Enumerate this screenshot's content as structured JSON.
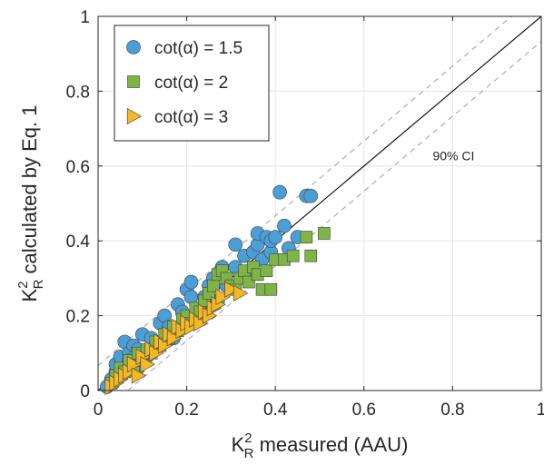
{
  "chart_data": {
    "type": "scatter",
    "title": "",
    "xlabel": {
      "main": "K",
      "sup": "2",
      "sub": "R",
      "rest": " measured (AAU)"
    },
    "ylabel": {
      "main": "K",
      "sup": "2",
      "sub": "R",
      "rest": " calculated by Eq. 1"
    },
    "xlim": [
      0,
      1
    ],
    "ylim": [
      0,
      1
    ],
    "xticks": [
      "0",
      "0.2",
      "0.4",
      "0.6",
      "0.8",
      "1"
    ],
    "yticks": [
      "0",
      "0.2",
      "0.4",
      "0.6",
      "0.8",
      "1"
    ],
    "grid": true,
    "legend_position": "top-left",
    "annotation": "90% CI",
    "reference_lines": [
      {
        "name": "1:1 line",
        "style": "solid",
        "color": "#000000",
        "points": [
          [
            0,
            0
          ],
          [
            1,
            1
          ]
        ]
      },
      {
        "name": "upper CI",
        "style": "dashed",
        "color": "#a6a6a6",
        "points": [
          [
            0,
            0.067
          ],
          [
            0.933,
            1
          ]
        ]
      },
      {
        "name": "lower CI",
        "style": "dashed",
        "color": "#a6a6a6",
        "points": [
          [
            0.067,
            0
          ],
          [
            1,
            0.933
          ]
        ]
      }
    ],
    "series": [
      {
        "name": "cot(α) = 1.5",
        "marker": "circle",
        "color": "#4a9fd8",
        "points": [
          [
            0.02,
            0.01
          ],
          [
            0.03,
            0.03
          ],
          [
            0.04,
            0.05
          ],
          [
            0.04,
            0.07
          ],
          [
            0.05,
            0.04
          ],
          [
            0.05,
            0.09
          ],
          [
            0.06,
            0.06
          ],
          [
            0.06,
            0.13
          ],
          [
            0.07,
            0.1
          ],
          [
            0.07,
            0.08
          ],
          [
            0.08,
            0.12
          ],
          [
            0.09,
            0.11
          ],
          [
            0.09,
            0.06
          ],
          [
            0.1,
            0.15
          ],
          [
            0.11,
            0.09
          ],
          [
            0.12,
            0.14
          ],
          [
            0.13,
            0.12
          ],
          [
            0.14,
            0.18
          ],
          [
            0.15,
            0.2
          ],
          [
            0.16,
            0.17
          ],
          [
            0.17,
            0.14
          ],
          [
            0.18,
            0.23
          ],
          [
            0.19,
            0.21
          ],
          [
            0.2,
            0.27
          ],
          [
            0.21,
            0.29
          ],
          [
            0.21,
            0.25
          ],
          [
            0.22,
            0.2
          ],
          [
            0.23,
            0.22
          ],
          [
            0.24,
            0.25
          ],
          [
            0.25,
            0.28
          ],
          [
            0.26,
            0.3
          ],
          [
            0.27,
            0.24
          ],
          [
            0.28,
            0.33
          ],
          [
            0.29,
            0.28
          ],
          [
            0.31,
            0.39
          ],
          [
            0.31,
            0.33
          ],
          [
            0.33,
            0.36
          ],
          [
            0.34,
            0.3
          ],
          [
            0.35,
            0.37
          ],
          [
            0.36,
            0.39
          ],
          [
            0.36,
            0.42
          ],
          [
            0.37,
            0.35
          ],
          [
            0.38,
            0.41
          ],
          [
            0.39,
            0.37
          ],
          [
            0.39,
            0.4
          ],
          [
            0.4,
            0.41
          ],
          [
            0.41,
            0.53
          ],
          [
            0.42,
            0.44
          ],
          [
            0.43,
            0.38
          ],
          [
            0.45,
            0.41
          ],
          [
            0.47,
            0.52
          ],
          [
            0.48,
            0.52
          ]
        ]
      },
      {
        "name": "cot(α) = 2",
        "marker": "square",
        "color": "#7eb544",
        "points": [
          [
            0.03,
            0.02
          ],
          [
            0.04,
            0.04
          ],
          [
            0.05,
            0.06
          ],
          [
            0.06,
            0.05
          ],
          [
            0.07,
            0.08
          ],
          [
            0.08,
            0.06
          ],
          [
            0.09,
            0.1
          ],
          [
            0.1,
            0.08
          ],
          [
            0.11,
            0.11
          ],
          [
            0.12,
            0.1
          ],
          [
            0.13,
            0.13
          ],
          [
            0.14,
            0.12
          ],
          [
            0.15,
            0.15
          ],
          [
            0.16,
            0.14
          ],
          [
            0.17,
            0.17
          ],
          [
            0.18,
            0.16
          ],
          [
            0.19,
            0.19
          ],
          [
            0.2,
            0.2
          ],
          [
            0.21,
            0.18
          ],
          [
            0.22,
            0.22
          ],
          [
            0.23,
            0.21
          ],
          [
            0.24,
            0.24
          ],
          [
            0.25,
            0.26
          ],
          [
            0.26,
            0.28
          ],
          [
            0.27,
            0.31
          ],
          [
            0.28,
            0.32
          ],
          [
            0.29,
            0.3
          ],
          [
            0.3,
            0.28
          ],
          [
            0.31,
            0.27
          ],
          [
            0.32,
            0.3
          ],
          [
            0.33,
            0.32
          ],
          [
            0.34,
            0.29
          ],
          [
            0.35,
            0.33
          ],
          [
            0.36,
            0.31
          ],
          [
            0.37,
            0.27
          ],
          [
            0.38,
            0.32
          ],
          [
            0.39,
            0.27
          ],
          [
            0.4,
            0.35
          ],
          [
            0.42,
            0.35
          ],
          [
            0.44,
            0.36
          ],
          [
            0.47,
            0.41
          ],
          [
            0.48,
            0.36
          ],
          [
            0.51,
            0.42
          ]
        ]
      },
      {
        "name": "cot(α) = 3",
        "marker": "triangle-right",
        "color": "#f5b820",
        "points": [
          [
            0.03,
            0.01
          ],
          [
            0.04,
            0.02
          ],
          [
            0.05,
            0.03
          ],
          [
            0.06,
            0.04
          ],
          [
            0.07,
            0.05
          ],
          [
            0.08,
            0.07
          ],
          [
            0.09,
            0.04
          ],
          [
            0.1,
            0.09
          ],
          [
            0.11,
            0.07
          ],
          [
            0.12,
            0.11
          ],
          [
            0.13,
            0.1
          ],
          [
            0.14,
            0.13
          ],
          [
            0.15,
            0.12
          ],
          [
            0.16,
            0.15
          ],
          [
            0.17,
            0.14
          ],
          [
            0.18,
            0.17
          ],
          [
            0.19,
            0.16
          ],
          [
            0.2,
            0.18
          ],
          [
            0.21,
            0.17
          ],
          [
            0.22,
            0.19
          ],
          [
            0.23,
            0.18
          ],
          [
            0.24,
            0.21
          ],
          [
            0.25,
            0.2
          ],
          [
            0.26,
            0.22
          ],
          [
            0.27,
            0.23
          ],
          [
            0.28,
            0.25
          ],
          [
            0.3,
            0.27
          ],
          [
            0.32,
            0.26
          ]
        ]
      }
    ]
  }
}
